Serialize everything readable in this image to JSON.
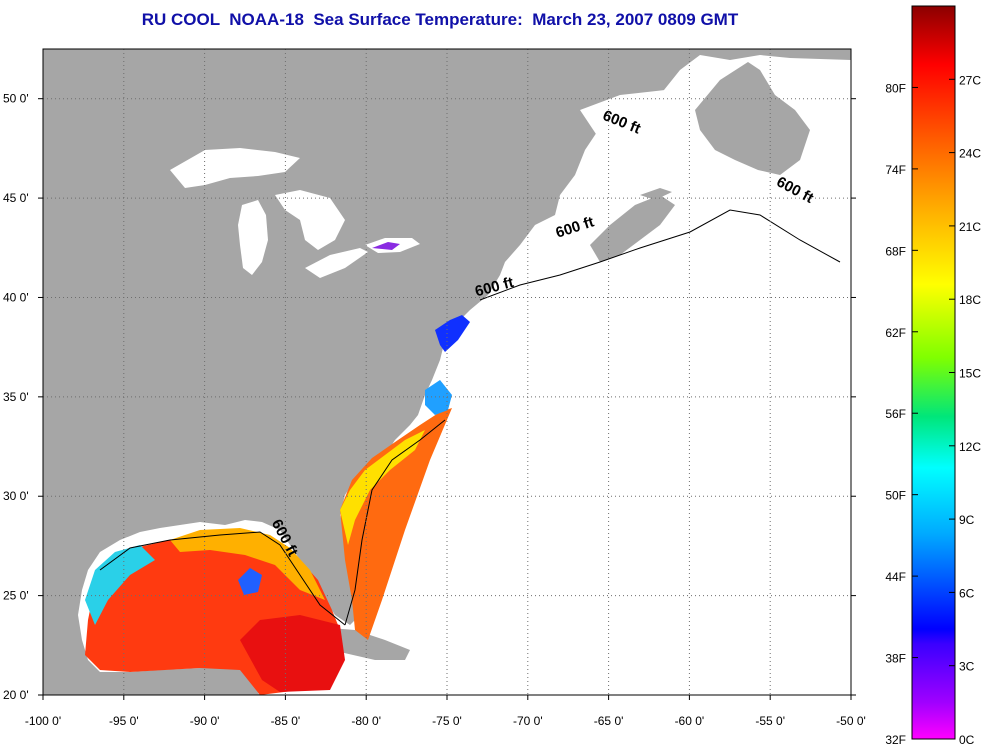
{
  "title": "RU COOL  NOAA-18  Sea Surface Temperature:  March 23, 2007 0809 GMT",
  "map": {
    "lon_range": [
      -100,
      -50
    ],
    "lat_range": [
      20,
      52.5
    ],
    "lon_ticks": [
      "-100 0'",
      "-95 0'",
      "-90 0'",
      "-85 0'",
      "-80 0'",
      "-75 0'",
      "-70 0'",
      "-65 0'",
      "-60 0'",
      "-55 0'",
      "-50 0'"
    ],
    "lat_ticks": [
      "20 0'",
      "25 0'",
      "30 0'",
      "35 0'",
      "40 0'",
      "45 0'",
      "50 0'"
    ],
    "isobath_labels": [
      {
        "text": "600 ft",
        "lon": -64.3,
        "lat": 48.6,
        "rotate": 22
      },
      {
        "text": "600 ft",
        "lon": -53.6,
        "lat": 45.2,
        "rotate": 28
      },
      {
        "text": "600 ft",
        "lon": -67.0,
        "lat": 43.3,
        "rotate": -18
      },
      {
        "text": "600 ft",
        "lon": -72.0,
        "lat": 40.3,
        "rotate": -15
      },
      {
        "text": "600 ft",
        "lon": -85.3,
        "lat": 27.8,
        "rotate": 62
      }
    ],
    "colors": {
      "land": "#a6a6a6",
      "water": "#ffffff",
      "grid": "#6e6e6e"
    }
  },
  "colorbar": {
    "fahrenheit_labels": [
      "80F",
      "74F",
      "68F",
      "62F",
      "56F",
      "50F",
      "44F",
      "38F",
      "32F"
    ],
    "celsius_labels": [
      "27C",
      "24C",
      "21C",
      "18C",
      "15C",
      "12C",
      "9C",
      "6C",
      "3C",
      "0C"
    ],
    "colors": [
      "#8b0000",
      "#ff0000",
      "#ff7a00",
      "#ffd700",
      "#ffff00",
      "#7fff00",
      "#00e67a",
      "#00ffff",
      "#00aaff",
      "#0000ff",
      "#7b00ff",
      "#ff00ff"
    ]
  }
}
